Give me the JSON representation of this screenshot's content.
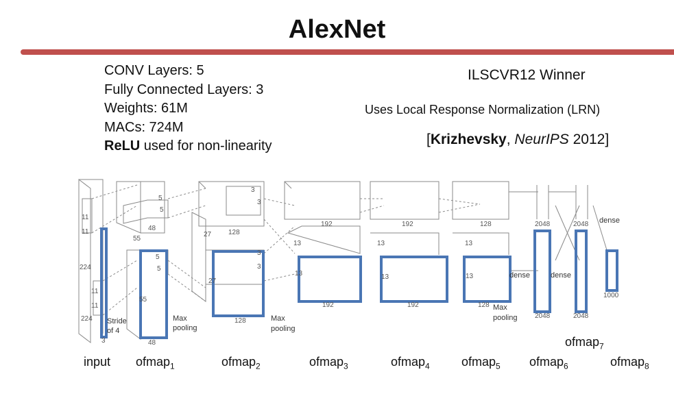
{
  "title": "AlexNet",
  "colors": {
    "rule": "#c0504d",
    "highlight": "#4a76b4",
    "sketch": "#8a8a8a"
  },
  "stats": [
    "CONV Layers: 5",
    "Fully Connected Layers: 3",
    "Weights: 61M",
    "MACs: 724M"
  ],
  "relu": {
    "bold": "ReLU",
    "rest": " used for non-linearity"
  },
  "winner": "ILSCVR12 Winner",
  "lrn": "Uses Local Response Normalization (LRN)",
  "citation": {
    "open": "[",
    "author": "Krizhevsky",
    "sep": ", ",
    "venue": "NeurIPS",
    "year": " 2012]"
  },
  "diagram_text": {
    "k11a": "11",
    "k11b": "11",
    "k11c": "11",
    "k11d": "11",
    "n224a": "224",
    "n224b": "224",
    "n3": "3",
    "stride": "Stride",
    "of4": "of 4",
    "k5a": "5",
    "k5b": "5",
    "k5c": "5",
    "k5d": "5",
    "n55a": "55",
    "n55b": "55",
    "n48a": "48",
    "n48b": "48",
    "maxpool1a": "Max",
    "maxpool1b": "pooling",
    "n27a": "27",
    "n27b": "27",
    "n128a": "128",
    "n128b": "128",
    "k3a": "3",
    "k3b": "3",
    "k3c": "3",
    "k3d": "3",
    "maxpool2a": "Max",
    "maxpool2b": "pooling",
    "n13a": "13",
    "n13b": "13",
    "n13c": "13",
    "n13d": "13",
    "n13e": "13",
    "n13f": "13",
    "n192a": "192",
    "n192b": "192",
    "n192c": "192",
    "n192d": "192",
    "n128c": "128",
    "n128d": "128",
    "maxpool3a": "Max",
    "maxpool3b": "pooling",
    "dense1": "dense",
    "dense2": "dense",
    "dense3": "dense",
    "n2048a": "2048",
    "n2048b": "2048",
    "n2048c": "2048",
    "n2048d": "2048",
    "n1000": "1000"
  },
  "labels": {
    "input": "input",
    "ofmap1": {
      "base": "ofmap",
      "sub": "1"
    },
    "ofmap2": {
      "base": "ofmap",
      "sub": "2"
    },
    "ofmap3": {
      "base": "ofmap",
      "sub": "3"
    },
    "ofmap4": {
      "base": "ofmap",
      "sub": "4"
    },
    "ofmap5": {
      "base": "ofmap",
      "sub": "5"
    },
    "ofmap6": {
      "base": "ofmap",
      "sub": "6"
    },
    "ofmap7": {
      "base": "ofmap",
      "sub": "7"
    },
    "ofmap8": {
      "base": "ofmap",
      "sub": "8"
    }
  }
}
